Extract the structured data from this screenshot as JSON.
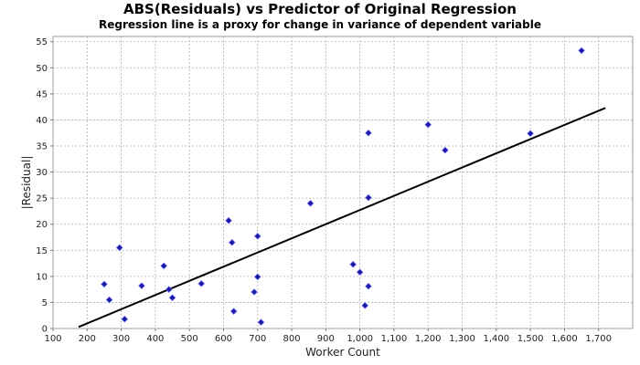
{
  "chart_data": {
    "type": "scatter",
    "title": "ABS(Residuals) vs Predictor of Original Regression",
    "subtitle": "Regression line is a proxy for change in variance of dependent variable",
    "xlabel": "Worker Count",
    "ylabel": "|Residual|",
    "xlim": [
      100,
      1800
    ],
    "ylim": [
      0,
      56
    ],
    "xticks": [
      100,
      200,
      300,
      400,
      500,
      600,
      700,
      800,
      900,
      1000,
      1100,
      1200,
      1300,
      1400,
      1500,
      1600,
      1700
    ],
    "xtick_labels": [
      "100",
      "200",
      "300",
      "400",
      "500",
      "600",
      "700",
      "800",
      "900",
      "1,000",
      "1,100",
      "1,200",
      "1,300",
      "1,400",
      "1,500",
      "1,600",
      "1,700"
    ],
    "yticks": [
      0,
      5,
      10,
      15,
      20,
      25,
      30,
      35,
      40,
      45,
      50,
      55
    ],
    "grid": true,
    "legend": "none",
    "point_color": "#1a1aa0",
    "line_color": "#000000",
    "points": [
      {
        "x": 250,
        "y": 8.5
      },
      {
        "x": 265,
        "y": 5.5
      },
      {
        "x": 295,
        "y": 15.5
      },
      {
        "x": 310,
        "y": 1.8
      },
      {
        "x": 360,
        "y": 8.2
      },
      {
        "x": 425,
        "y": 12.0
      },
      {
        "x": 440,
        "y": 7.5
      },
      {
        "x": 450,
        "y": 5.9
      },
      {
        "x": 535,
        "y": 8.6
      },
      {
        "x": 615,
        "y": 20.7
      },
      {
        "x": 625,
        "y": 16.5
      },
      {
        "x": 630,
        "y": 3.3
      },
      {
        "x": 690,
        "y": 7.0
      },
      {
        "x": 700,
        "y": 9.9
      },
      {
        "x": 700,
        "y": 17.7
      },
      {
        "x": 710,
        "y": 1.2
      },
      {
        "x": 855,
        "y": 24.0
      },
      {
        "x": 980,
        "y": 12.3
      },
      {
        "x": 1000,
        "y": 10.8
      },
      {
        "x": 1015,
        "y": 4.4
      },
      {
        "x": 1025,
        "y": 8.1
      },
      {
        "x": 1025,
        "y": 25.1
      },
      {
        "x": 1025,
        "y": 37.5
      },
      {
        "x": 1200,
        "y": 39.1
      },
      {
        "x": 1250,
        "y": 34.2
      },
      {
        "x": 1500,
        "y": 37.4
      },
      {
        "x": 1650,
        "y": 53.3
      }
    ],
    "regression_line": {
      "x": [
        175,
        1720
      ],
      "y": [
        0.3,
        42.3
      ]
    }
  }
}
